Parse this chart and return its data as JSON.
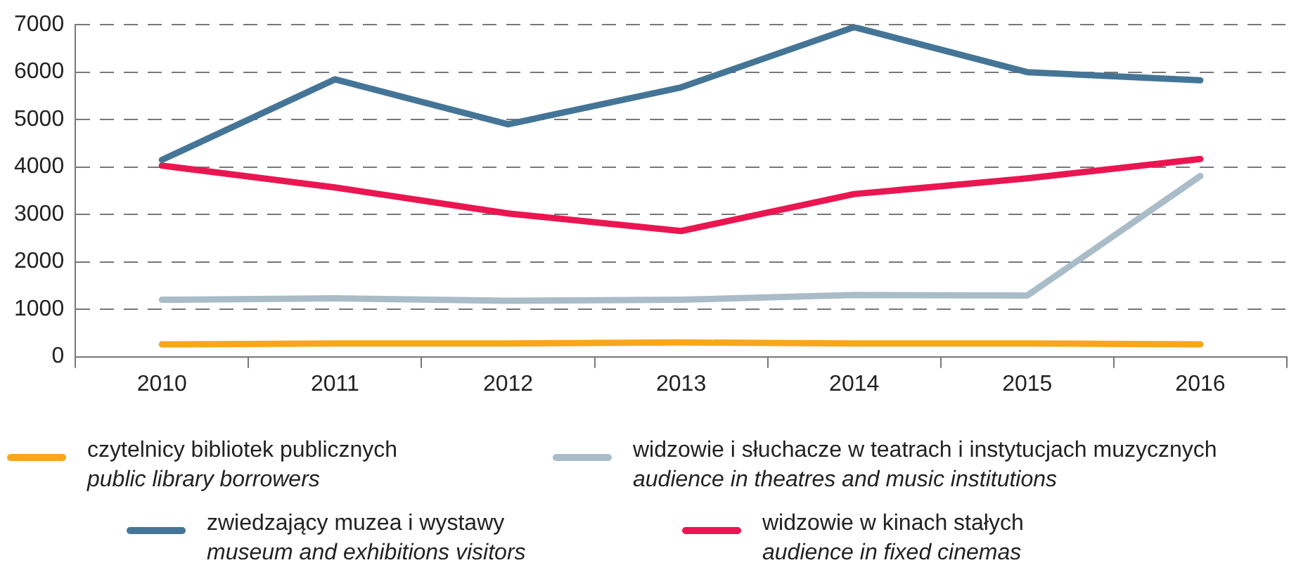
{
  "chart_data": {
    "type": "line",
    "categories": [
      "2010",
      "2011",
      "2012",
      "2013",
      "2014",
      "2015",
      "2016"
    ],
    "series": [
      {
        "name": "czytelnicy bibliotek publicznych\npublic library borrowers",
        "color": "#f9a61a",
        "values": [
          260,
          280,
          280,
          300,
          280,
          280,
          260
        ]
      },
      {
        "name": "widzowie i słuchacze w teatrach i instytucjach muzycznych\naudience in theatres and music institutions",
        "color": "#a9bcc8",
        "values": [
          1200,
          1230,
          1180,
          1200,
          1300,
          1290,
          3810
        ]
      },
      {
        "name": "zwiedzający muzea i wystawy\nmuseum and exhibitions visitors",
        "color": "#457596",
        "values": [
          4150,
          5850,
          4900,
          5680,
          6950,
          6000,
          5830
        ]
      },
      {
        "name": "widzowie w kinach stałych\naudience in fixed cinemas",
        "color": "#ea1651",
        "values": [
          4030,
          3570,
          3020,
          2650,
          3430,
          3760,
          4170
        ]
      }
    ],
    "ylim": [
      0,
      7000
    ],
    "yticks": [
      0,
      1000,
      2000,
      3000,
      4000,
      5000,
      6000,
      7000
    ],
    "grid": "y",
    "legend": "bottom",
    "marker": "none",
    "line_style": "solid"
  }
}
